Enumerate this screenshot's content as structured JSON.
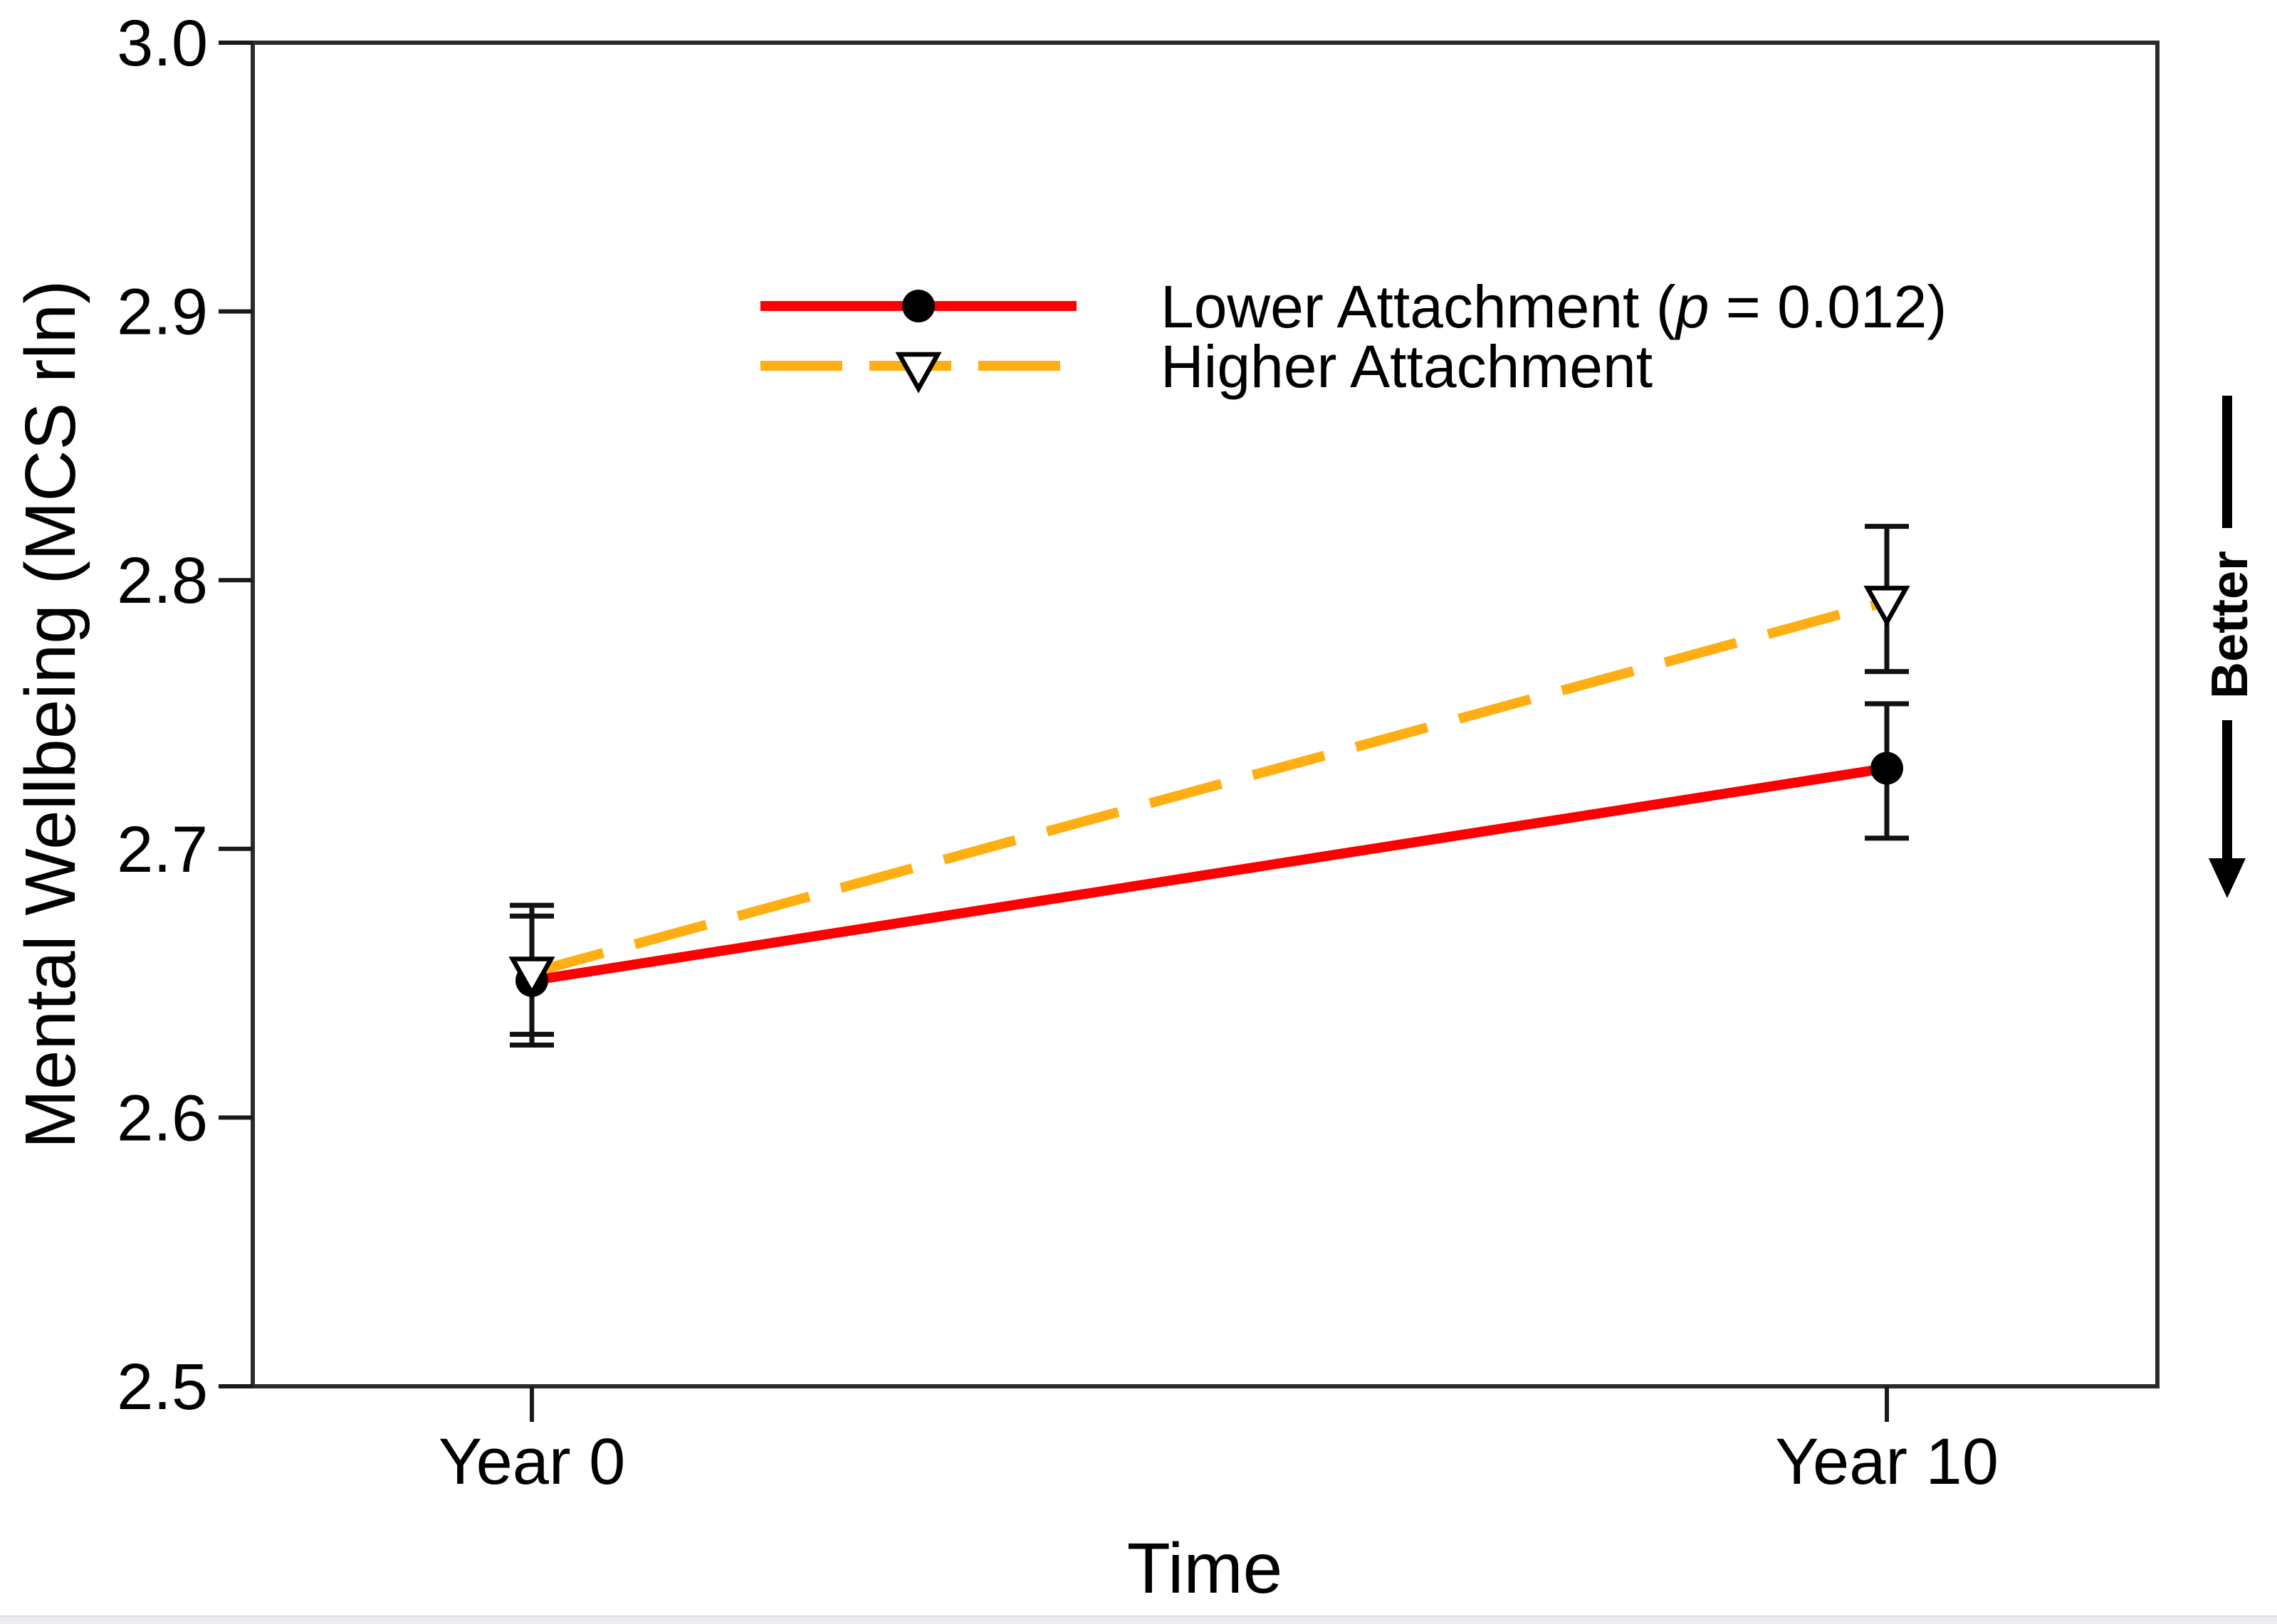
{
  "figure": {
    "background_color": "#ffffff",
    "axis_color": "#2b2b2b",
    "text_color": "#000000",
    "bottom_strip_color": "#ececef"
  },
  "chart_data": {
    "type": "line",
    "title": "",
    "xlabel": "Time",
    "ylabel": "Mental Wellbeing (MCS rln)",
    "categories": [
      "Year 0",
      "Year 10"
    ],
    "ylim": [
      2.5,
      3.0
    ],
    "ytick_labels": [
      "3.0",
      "2.9",
      "2.8",
      "2.7",
      "2.6",
      "2.5"
    ],
    "grid": false,
    "legend_position": "upper-center-inside",
    "series": [
      {
        "label": "Lower Attachment (p = 0.012)",
        "label_pre": "Lower Attachment (",
        "label_italic": "p",
        "label_post": " = 0.012)",
        "color": "#fe0000",
        "line_style": "solid",
        "marker": "filled-circle",
        "marker_color": "#000000",
        "values": [
          2.651,
          2.73
        ],
        "err_low": [
          2.627,
          2.704
        ],
        "err_high": [
          2.675,
          2.754
        ]
      },
      {
        "label": "Higher Attachment",
        "color": "#ffaf14",
        "line_style": "dashed",
        "marker": "open-triangle-down",
        "marker_color": "#000000",
        "values": [
          2.654,
          2.792
        ],
        "err_low": [
          2.631,
          2.766
        ],
        "err_high": [
          2.679,
          2.82
        ]
      }
    ],
    "annotation": {
      "text": "Better",
      "arrow_direction": "down",
      "position": "right-of-plot"
    }
  }
}
